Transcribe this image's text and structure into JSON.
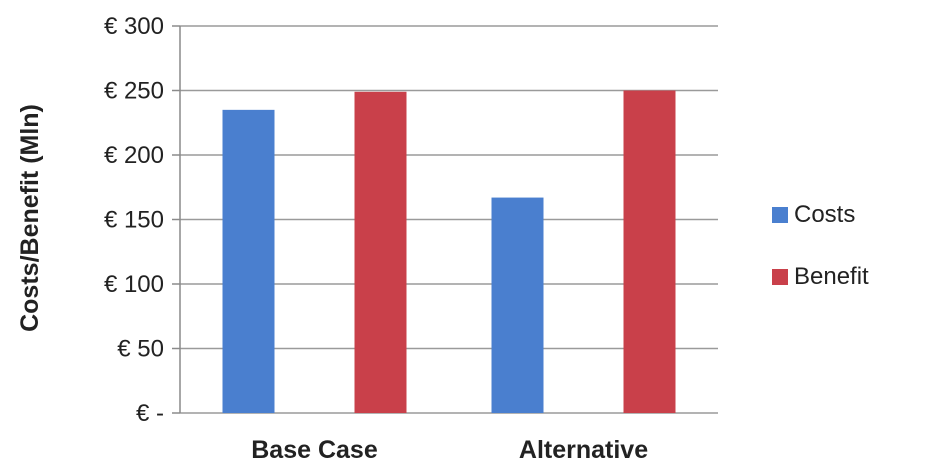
{
  "chart_data": {
    "type": "bar",
    "title": "",
    "xlabel": "",
    "ylabel": "Costs/Benefit (Mln)",
    "categories": [
      "Base Case",
      "Alternative"
    ],
    "series": [
      {
        "name": "Costs",
        "values": [
          235,
          167
        ],
        "color": "#4a7fcf"
      },
      {
        "name": "Benefit",
        "values": [
          249,
          250
        ],
        "color": "#c9404a"
      }
    ],
    "ylim": [
      0,
      300
    ],
    "yticks": [
      {
        "value": 0,
        "label": "€ -"
      },
      {
        "value": 50,
        "label": "€ 50"
      },
      {
        "value": 100,
        "label": "€ 100"
      },
      {
        "value": 150,
        "label": "€ 150"
      },
      {
        "value": 200,
        "label": "€ 200"
      },
      {
        "value": 250,
        "label": "€ 250"
      },
      {
        "value": 300,
        "label": "€ 300"
      }
    ],
    "grid": true,
    "legend_position": "right"
  }
}
